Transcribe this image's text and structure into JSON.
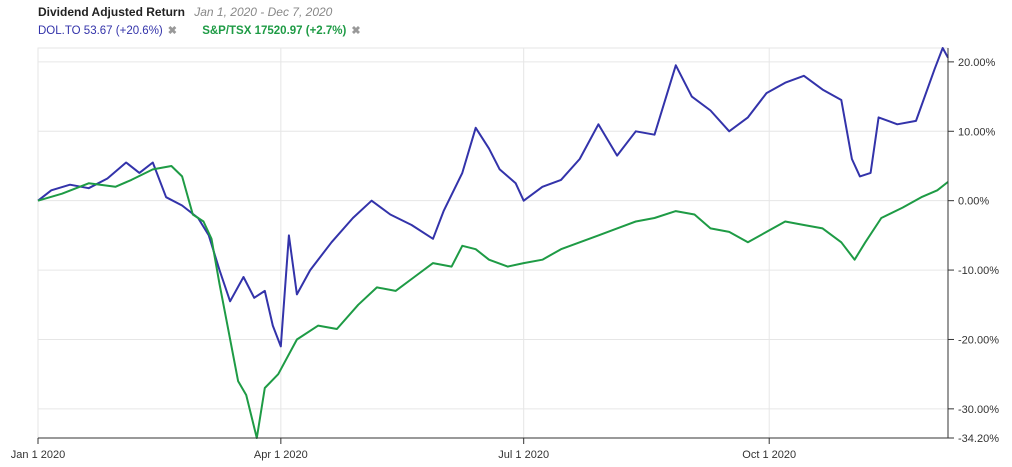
{
  "header": {
    "title": "Dividend Adjusted Return",
    "date_range": "Jan 1, 2020 - Dec 7, 2020",
    "remove_icon": "close-icon"
  },
  "chart_data": {
    "type": "line",
    "x_range": [
      "2020-01-01",
      "2020-12-07"
    ],
    "y_range": [
      -34.2,
      22.0
    ],
    "y_axis_position": "right",
    "y_unit": "%",
    "grid": true,
    "legend": "top-left",
    "x_ticks": [
      {
        "date": "2020-01-01",
        "label": "Jan 1 2020"
      },
      {
        "date": "2020-04-01",
        "label": "Apr 1 2020"
      },
      {
        "date": "2020-07-01",
        "label": "Jul 1 2020"
      },
      {
        "date": "2020-10-01",
        "label": "Oct 1 2020"
      }
    ],
    "y_ticks": [
      {
        "value": 20,
        "label": "20.00%"
      },
      {
        "value": 10,
        "label": "10.00%"
      },
      {
        "value": 0,
        "label": "0.00%"
      },
      {
        "value": -10,
        "label": "-10.00%"
      },
      {
        "value": -20,
        "label": "-20.00%"
      },
      {
        "value": -30,
        "label": "-30.00%"
      },
      {
        "value": -34.2,
        "label": "-34.20%"
      }
    ],
    "series": [
      {
        "name": "DOL.TO",
        "legend_label": "DOL.TO 53.67 (+20.6%)",
        "color": "#3333aa",
        "points": [
          [
            "2020-01-01",
            0
          ],
          [
            "2020-01-06",
            1.5
          ],
          [
            "2020-01-13",
            2.3
          ],
          [
            "2020-01-20",
            1.8
          ],
          [
            "2020-01-27",
            3.2
          ],
          [
            "2020-02-03",
            5.5
          ],
          [
            "2020-02-08",
            4
          ],
          [
            "2020-02-13",
            5.5
          ],
          [
            "2020-02-18",
            0.5
          ],
          [
            "2020-02-24",
            -0.7
          ],
          [
            "2020-03-01",
            -2.5
          ],
          [
            "2020-03-05",
            -5
          ],
          [
            "2020-03-09",
            -10
          ],
          [
            "2020-03-13",
            -14.5
          ],
          [
            "2020-03-18",
            -11
          ],
          [
            "2020-03-22",
            -14
          ],
          [
            "2020-03-26",
            -13
          ],
          [
            "2020-03-29",
            -18
          ],
          [
            "2020-04-01",
            -21
          ],
          [
            "2020-04-04",
            -5
          ],
          [
            "2020-04-07",
            -13.5
          ],
          [
            "2020-04-12",
            -10
          ],
          [
            "2020-04-20",
            -6
          ],
          [
            "2020-04-28",
            -2.5
          ],
          [
            "2020-05-05",
            0
          ],
          [
            "2020-05-12",
            -2
          ],
          [
            "2020-05-20",
            -3.5
          ],
          [
            "2020-05-28",
            -5.5
          ],
          [
            "2020-06-01",
            -1.5
          ],
          [
            "2020-06-08",
            4
          ],
          [
            "2020-06-13",
            10.5
          ],
          [
            "2020-06-18",
            7.5
          ],
          [
            "2020-06-22",
            4.5
          ],
          [
            "2020-06-28",
            2.5
          ],
          [
            "2020-07-01",
            0
          ],
          [
            "2020-07-08",
            2
          ],
          [
            "2020-07-15",
            3
          ],
          [
            "2020-07-22",
            6
          ],
          [
            "2020-07-29",
            11
          ],
          [
            "2020-08-05",
            6.5
          ],
          [
            "2020-08-12",
            10
          ],
          [
            "2020-08-19",
            9.5
          ],
          [
            "2020-08-27",
            19.5
          ],
          [
            "2020-09-02",
            15
          ],
          [
            "2020-09-09",
            13
          ],
          [
            "2020-09-16",
            10
          ],
          [
            "2020-09-23",
            12
          ],
          [
            "2020-09-30",
            15.5
          ],
          [
            "2020-10-07",
            17
          ],
          [
            "2020-10-14",
            18
          ],
          [
            "2020-10-21",
            16
          ],
          [
            "2020-10-28",
            14.5
          ],
          [
            "2020-11-01",
            6
          ],
          [
            "2020-11-04",
            3.5
          ],
          [
            "2020-11-08",
            4
          ],
          [
            "2020-11-11",
            12
          ],
          [
            "2020-11-18",
            11
          ],
          [
            "2020-11-25",
            11.5
          ],
          [
            "2020-12-02",
            19
          ],
          [
            "2020-12-05",
            22
          ],
          [
            "2020-12-07",
            20.6
          ]
        ]
      },
      {
        "name": "S&P/TSX",
        "legend_label": "S&P/TSX 17520.97 (+2.7%)",
        "color": "#1e9b45",
        "points": [
          [
            "2020-01-01",
            0
          ],
          [
            "2020-01-10",
            1
          ],
          [
            "2020-01-20",
            2.5
          ],
          [
            "2020-01-30",
            2
          ],
          [
            "2020-02-05",
            3
          ],
          [
            "2020-02-13",
            4.5
          ],
          [
            "2020-02-20",
            5
          ],
          [
            "2020-02-24",
            3.5
          ],
          [
            "2020-02-28",
            -2
          ],
          [
            "2020-03-03",
            -3
          ],
          [
            "2020-03-06",
            -5.5
          ],
          [
            "2020-03-09",
            -12
          ],
          [
            "2020-03-12",
            -18
          ],
          [
            "2020-03-16",
            -26
          ],
          [
            "2020-03-19",
            -28
          ],
          [
            "2020-03-23",
            -34.2
          ],
          [
            "2020-03-26",
            -27
          ],
          [
            "2020-03-31",
            -25
          ],
          [
            "2020-04-07",
            -20
          ],
          [
            "2020-04-15",
            -18
          ],
          [
            "2020-04-22",
            -18.5
          ],
          [
            "2020-04-30",
            -15
          ],
          [
            "2020-05-07",
            -12.5
          ],
          [
            "2020-05-14",
            -13
          ],
          [
            "2020-05-21",
            -11
          ],
          [
            "2020-05-28",
            -9
          ],
          [
            "2020-06-04",
            -9.5
          ],
          [
            "2020-06-08",
            -6.5
          ],
          [
            "2020-06-13",
            -7
          ],
          [
            "2020-06-18",
            -8.5
          ],
          [
            "2020-06-25",
            -9.5
          ],
          [
            "2020-07-01",
            -9
          ],
          [
            "2020-07-08",
            -8.5
          ],
          [
            "2020-07-15",
            -7
          ],
          [
            "2020-07-22",
            -6
          ],
          [
            "2020-07-29",
            -5
          ],
          [
            "2020-08-05",
            -4
          ],
          [
            "2020-08-12",
            -3
          ],
          [
            "2020-08-19",
            -2.5
          ],
          [
            "2020-08-27",
            -1.5
          ],
          [
            "2020-09-03",
            -2
          ],
          [
            "2020-09-09",
            -4
          ],
          [
            "2020-09-16",
            -4.5
          ],
          [
            "2020-09-23",
            -6
          ],
          [
            "2020-09-30",
            -4.5
          ],
          [
            "2020-10-07",
            -3
          ],
          [
            "2020-10-14",
            -3.5
          ],
          [
            "2020-10-21",
            -4
          ],
          [
            "2020-10-28",
            -6
          ],
          [
            "2020-11-02",
            -8.5
          ],
          [
            "2020-11-06",
            -6
          ],
          [
            "2020-11-12",
            -2.5
          ],
          [
            "2020-11-20",
            -1
          ],
          [
            "2020-11-27",
            0.5
          ],
          [
            "2020-12-03",
            1.5
          ],
          [
            "2020-12-07",
            2.7
          ]
        ]
      }
    ]
  }
}
